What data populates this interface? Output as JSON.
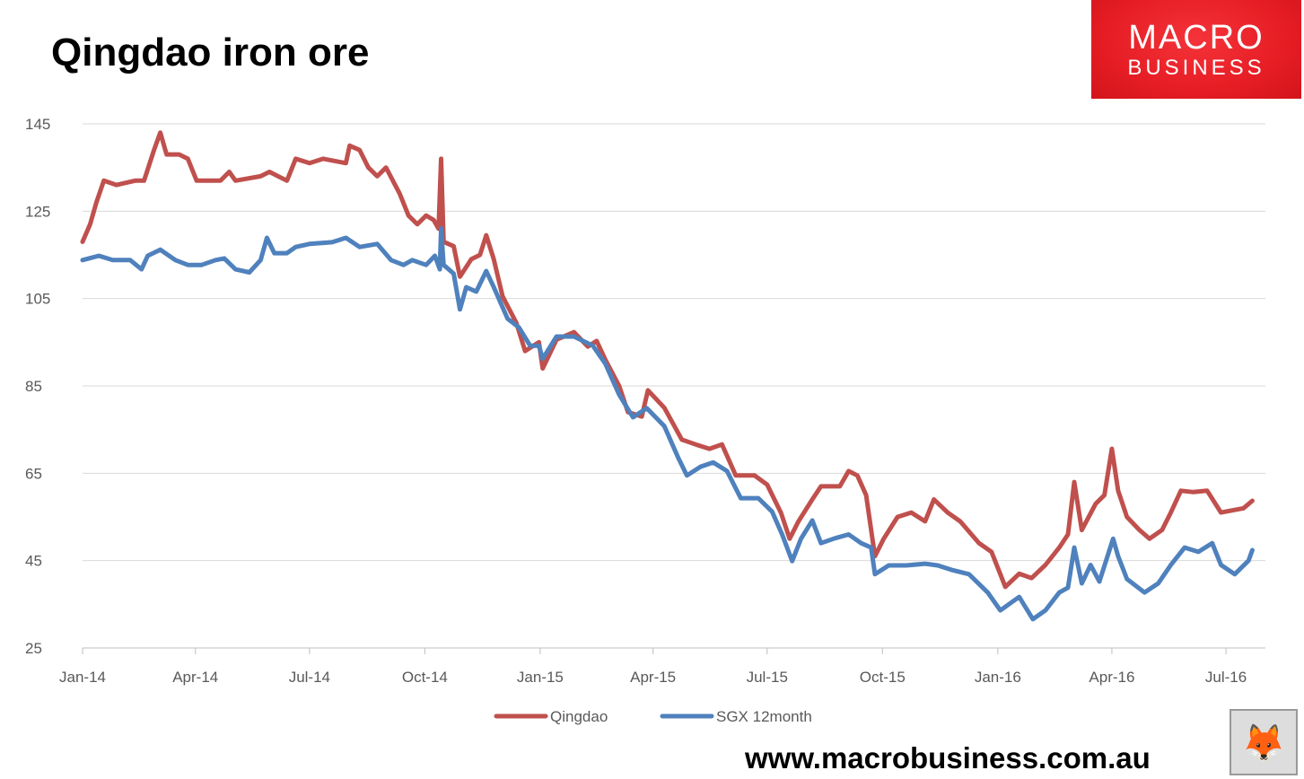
{
  "title": "Qingdao iron ore",
  "logo": {
    "line1": "MACRO",
    "line2": "BUSINESS",
    "color": "#e61d24"
  },
  "footer_url": "www.macrobusiness.com.au",
  "fox_icon": "fox-head-icon",
  "chart_data": {
    "type": "line",
    "title": "Qingdao iron ore",
    "xlabel": "",
    "ylabel": "",
    "ylim": [
      25,
      145
    ],
    "yticks": [
      25,
      45,
      65,
      85,
      105,
      125,
      145
    ],
    "xlim": [
      "2014-01-01",
      "2016-08-10"
    ],
    "xticks": [
      {
        "date": "2014-01-01",
        "label": "Jan-14"
      },
      {
        "date": "2014-04-01",
        "label": "Apr-14"
      },
      {
        "date": "2014-07-01",
        "label": "Jul-14"
      },
      {
        "date": "2014-10-01",
        "label": "Oct-14"
      },
      {
        "date": "2015-01-01",
        "label": "Jan-15"
      },
      {
        "date": "2015-04-01",
        "label": "Apr-15"
      },
      {
        "date": "2015-07-01",
        "label": "Jul-15"
      },
      {
        "date": "2015-10-01",
        "label": "Oct-15"
      },
      {
        "date": "2016-01-01",
        "label": "Jan-16"
      },
      {
        "date": "2016-04-01",
        "label": "Apr-16"
      },
      {
        "date": "2016-07-01",
        "label": "Jul-16"
      }
    ],
    "grid": "horizontal",
    "legend": "bottom",
    "series": [
      {
        "name": "Qingdao",
        "color": "#c0504d",
        "points": [
          [
            "2014-01-01",
            118
          ],
          [
            "2014-01-07",
            122
          ],
          [
            "2014-01-12",
            127
          ],
          [
            "2014-01-18",
            132
          ],
          [
            "2014-01-28",
            131
          ],
          [
            "2014-02-12",
            132
          ],
          [
            "2014-02-19",
            132
          ],
          [
            "2014-02-27",
            139
          ],
          [
            "2014-03-04",
            143
          ],
          [
            "2014-03-09",
            138
          ],
          [
            "2014-03-19",
            138
          ],
          [
            "2014-03-26",
            137
          ],
          [
            "2014-04-02",
            132
          ],
          [
            "2014-04-21",
            132
          ],
          [
            "2014-04-28",
            134
          ],
          [
            "2014-05-03",
            132
          ],
          [
            "2014-05-23",
            133
          ],
          [
            "2014-05-30",
            134
          ],
          [
            "2014-06-13",
            132
          ],
          [
            "2014-06-20",
            137
          ],
          [
            "2014-07-01",
            136
          ],
          [
            "2014-07-12",
            137
          ],
          [
            "2014-07-30",
            136
          ],
          [
            "2014-08-02",
            140
          ],
          [
            "2014-08-10",
            139
          ],
          [
            "2014-08-17",
            135
          ],
          [
            "2014-08-24",
            133
          ],
          [
            "2014-08-31",
            135
          ],
          [
            "2014-09-11",
            129
          ],
          [
            "2014-09-18",
            124
          ],
          [
            "2014-09-25",
            122
          ],
          [
            "2014-10-02",
            124
          ],
          [
            "2014-10-08",
            123
          ],
          [
            "2014-10-12",
            121
          ],
          [
            "2014-10-14",
            137
          ],
          [
            "2014-10-16",
            118
          ],
          [
            "2014-10-24",
            117
          ],
          [
            "2014-10-29",
            110
          ],
          [
            "2014-11-07",
            114
          ],
          [
            "2014-11-14",
            115
          ],
          [
            "2014-11-19",
            119.5
          ],
          [
            "2014-11-25",
            114
          ],
          [
            "2014-12-02",
            105.5
          ],
          [
            "2014-12-13",
            99.4
          ],
          [
            "2014-12-20",
            93
          ],
          [
            "2014-12-31",
            95
          ],
          [
            "2015-01-03",
            89
          ],
          [
            "2015-01-14",
            95.6
          ],
          [
            "2015-01-28",
            97.3
          ],
          [
            "2015-02-08",
            94
          ],
          [
            "2015-02-15",
            95.3
          ],
          [
            "2015-02-22",
            91
          ],
          [
            "2015-03-05",
            85
          ],
          [
            "2015-03-12",
            79
          ],
          [
            "2015-03-23",
            78
          ],
          [
            "2015-03-28",
            84
          ],
          [
            "2015-04-10",
            80
          ],
          [
            "2015-04-24",
            72.7
          ],
          [
            "2015-05-05",
            71.6
          ],
          [
            "2015-05-16",
            70.6
          ],
          [
            "2015-05-26",
            71.6
          ],
          [
            "2015-06-06",
            64.5
          ],
          [
            "2015-06-21",
            64.5
          ],
          [
            "2015-07-01",
            62.4
          ],
          [
            "2015-07-12",
            56
          ],
          [
            "2015-07-19",
            50
          ],
          [
            "2015-07-26",
            54
          ],
          [
            "2015-08-06",
            59
          ],
          [
            "2015-08-13",
            62
          ],
          [
            "2015-08-28",
            62
          ],
          [
            "2015-09-04",
            65.5
          ],
          [
            "2015-09-11",
            64.5
          ],
          [
            "2015-09-18",
            60
          ],
          [
            "2015-09-25",
            46
          ],
          [
            "2015-10-02",
            50
          ],
          [
            "2015-10-13",
            55
          ],
          [
            "2015-10-24",
            56
          ],
          [
            "2015-11-04",
            54
          ],
          [
            "2015-11-11",
            59
          ],
          [
            "2015-11-22",
            56
          ],
          [
            "2015-12-02",
            54
          ],
          [
            "2015-12-17",
            49
          ],
          [
            "2015-12-27",
            47
          ],
          [
            "2016-01-07",
            39
          ],
          [
            "2016-01-18",
            42
          ],
          [
            "2016-01-28",
            41
          ],
          [
            "2016-02-08",
            44
          ],
          [
            "2016-02-19",
            48
          ],
          [
            "2016-02-26",
            51
          ],
          [
            "2016-03-02",
            63
          ],
          [
            "2016-03-08",
            52
          ],
          [
            "2016-03-19",
            58
          ],
          [
            "2016-03-26",
            60
          ],
          [
            "2016-04-01",
            70.6
          ],
          [
            "2016-04-06",
            61
          ],
          [
            "2016-04-13",
            55
          ],
          [
            "2016-04-23",
            52
          ],
          [
            "2016-05-01",
            50
          ],
          [
            "2016-05-11",
            52
          ],
          [
            "2016-05-18",
            56
          ],
          [
            "2016-05-26",
            61
          ],
          [
            "2016-06-05",
            60.7
          ],
          [
            "2016-06-16",
            61
          ],
          [
            "2016-06-27",
            56
          ],
          [
            "2016-07-15",
            57
          ],
          [
            "2016-07-22",
            58.7
          ]
        ]
      },
      {
        "name": "SGX 12month",
        "color": "#4f81bd",
        "points": [
          [
            "2014-01-01",
            113.8
          ],
          [
            "2014-01-14",
            114.8
          ],
          [
            "2014-01-25",
            113.8
          ],
          [
            "2014-02-08",
            113.8
          ],
          [
            "2014-02-17",
            111.7
          ],
          [
            "2014-02-22",
            114.8
          ],
          [
            "2014-03-04",
            116.2
          ],
          [
            "2014-03-16",
            113.8
          ],
          [
            "2014-03-26",
            112.7
          ],
          [
            "2014-04-06",
            112.7
          ],
          [
            "2014-04-17",
            113.8
          ],
          [
            "2014-04-24",
            114.2
          ],
          [
            "2014-05-03",
            111.7
          ],
          [
            "2014-05-14",
            111
          ],
          [
            "2014-05-23",
            113.8
          ],
          [
            "2014-05-28",
            118.9
          ],
          [
            "2014-06-03",
            115.4
          ],
          [
            "2014-06-13",
            115.4
          ],
          [
            "2014-06-20",
            116.8
          ],
          [
            "2014-07-01",
            117.5
          ],
          [
            "2014-07-19",
            117.9
          ],
          [
            "2014-07-30",
            118.9
          ],
          [
            "2014-08-10",
            116.8
          ],
          [
            "2014-08-24",
            117.5
          ],
          [
            "2014-09-04",
            113.8
          ],
          [
            "2014-09-14",
            112.7
          ],
          [
            "2014-09-21",
            113.8
          ],
          [
            "2014-10-02",
            112.7
          ],
          [
            "2014-10-09",
            114.8
          ],
          [
            "2014-10-13",
            111.7
          ],
          [
            "2014-10-14",
            121
          ],
          [
            "2014-10-16",
            112.7
          ],
          [
            "2014-10-24",
            110.7
          ],
          [
            "2014-10-29",
            102.5
          ],
          [
            "2014-11-03",
            107.6
          ],
          [
            "2014-11-11",
            106.6
          ],
          [
            "2014-11-19",
            111.3
          ],
          [
            "2014-11-25",
            107.6
          ],
          [
            "2014-12-06",
            100.4
          ],
          [
            "2014-12-15",
            98.4
          ],
          [
            "2014-12-24",
            94.2
          ],
          [
            "2014-12-31",
            94.2
          ],
          [
            "2015-01-03",
            91.2
          ],
          [
            "2015-01-14",
            96.3
          ],
          [
            "2015-01-28",
            96.3
          ],
          [
            "2015-02-12",
            94.2
          ],
          [
            "2015-02-22",
            90.1
          ],
          [
            "2015-03-05",
            83
          ],
          [
            "2015-03-16",
            77.8
          ],
          [
            "2015-03-27",
            79.9
          ],
          [
            "2015-04-10",
            75.8
          ],
          [
            "2015-04-21",
            68.6
          ],
          [
            "2015-04-28",
            64.5
          ],
          [
            "2015-05-09",
            66.5
          ],
          [
            "2015-05-19",
            67.5
          ],
          [
            "2015-05-30",
            65.5
          ],
          [
            "2015-06-10",
            59.3
          ],
          [
            "2015-06-24",
            59.3
          ],
          [
            "2015-07-05",
            56.2
          ],
          [
            "2015-07-13",
            51
          ],
          [
            "2015-07-21",
            44.9
          ],
          [
            "2015-07-28",
            50
          ],
          [
            "2015-08-06",
            54.2
          ],
          [
            "2015-08-13",
            49
          ],
          [
            "2015-08-24",
            50.1
          ],
          [
            "2015-09-04",
            51
          ],
          [
            "2015-09-14",
            49
          ],
          [
            "2015-09-22",
            48
          ],
          [
            "2015-09-25",
            41.9
          ],
          [
            "2015-10-06",
            43.9
          ],
          [
            "2015-10-20",
            43.9
          ],
          [
            "2015-11-04",
            44.3
          ],
          [
            "2015-11-14",
            43.9
          ],
          [
            "2015-11-25",
            42.9
          ],
          [
            "2015-12-09",
            41.9
          ],
          [
            "2015-12-24",
            37.7
          ],
          [
            "2016-01-03",
            33.6
          ],
          [
            "2016-01-18",
            36.7
          ],
          [
            "2016-01-29",
            31.6
          ],
          [
            "2016-02-08",
            33.6
          ],
          [
            "2016-02-19",
            37.7
          ],
          [
            "2016-02-26",
            38.8
          ],
          [
            "2016-03-02",
            48
          ],
          [
            "2016-03-08",
            39.8
          ],
          [
            "2016-03-15",
            44
          ],
          [
            "2016-03-22",
            40.2
          ],
          [
            "2016-04-02",
            50
          ],
          [
            "2016-04-06",
            46
          ],
          [
            "2016-04-13",
            40.8
          ],
          [
            "2016-04-27",
            37.7
          ],
          [
            "2016-05-08",
            39.8
          ],
          [
            "2016-05-18",
            44
          ],
          [
            "2016-05-29",
            48
          ],
          [
            "2016-06-09",
            47
          ],
          [
            "2016-06-20",
            49
          ],
          [
            "2016-06-27",
            44
          ],
          [
            "2016-07-08",
            41.9
          ],
          [
            "2016-07-19",
            45
          ],
          [
            "2016-07-22",
            47.4
          ]
        ]
      }
    ]
  }
}
